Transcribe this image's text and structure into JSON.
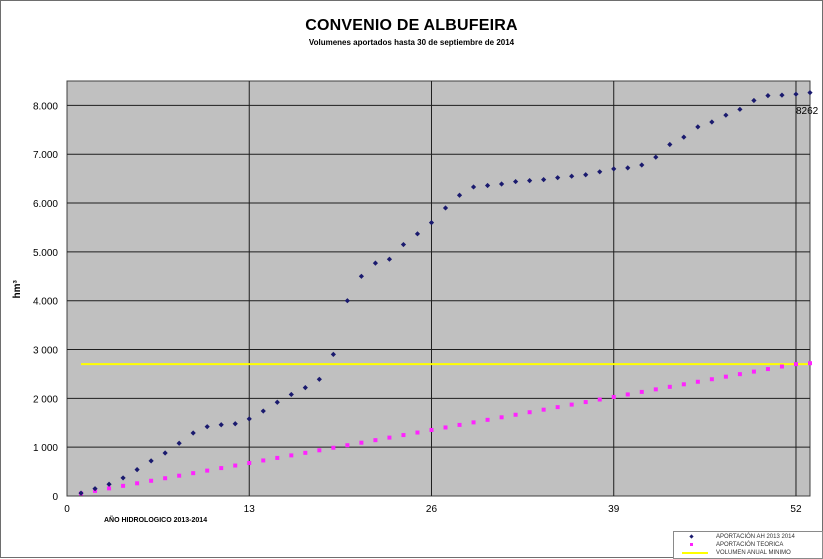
{
  "chart_data": {
    "type": "scatter",
    "title": "CONVENIO DE ALBUFEIRA",
    "subtitle": "Volumenes aportados hasta 30 de septiembre de 2014",
    "ylabel": "hm³",
    "xlabel": "AÑO HIDROLOGICO 2013-2014",
    "xlim": [
      0,
      53
    ],
    "ylim": [
      0,
      8500
    ],
    "x_ticks": [
      0,
      13,
      26,
      39,
      52
    ],
    "x_tick_labels": [
      "0",
      "13",
      "26",
      "39",
      "52"
    ],
    "y_ticks": [
      0,
      1000,
      2000,
      3000,
      4000,
      5000,
      6000,
      7000,
      8000
    ],
    "y_tick_labels": [
      "0",
      "1 000",
      "2 000",
      "3 000",
      "4.000",
      "5.000",
      "6.000",
      "7.000",
      "8.000"
    ],
    "grid": "vertical at x ticks, horizontal at y ticks",
    "annotation": {
      "text": "8262",
      "x": 53,
      "y": 8262
    },
    "series": [
      {
        "name": "APORTACIÓN AH 2013 2014",
        "color": "#1a1a6e",
        "marker": "diamond",
        "x": [
          1,
          2,
          3,
          4,
          5,
          6,
          7,
          8,
          9,
          10,
          11,
          12,
          13,
          14,
          15,
          16,
          17,
          18,
          19,
          20,
          21,
          22,
          23,
          24,
          25,
          26,
          27,
          28,
          29,
          30,
          31,
          32,
          33,
          34,
          35,
          36,
          37,
          38,
          39,
          40,
          41,
          42,
          43,
          44,
          45,
          46,
          47,
          48,
          49,
          50,
          51,
          52,
          53
        ],
        "y": [
          60,
          150,
          240,
          370,
          540,
          720,
          880,
          1080,
          1290,
          1420,
          1460,
          1480,
          1580,
          1740,
          1920,
          2080,
          2220,
          2390,
          2900,
          4000,
          4500,
          4770,
          4850,
          5150,
          5370,
          5600,
          5900,
          6160,
          6330,
          6360,
          6390,
          6440,
          6460,
          6480,
          6520,
          6550,
          6580,
          6640,
          6700,
          6720,
          6780,
          6940,
          7200,
          7350,
          7560,
          7660,
          7800,
          7920,
          8100,
          8200,
          8210,
          8230,
          8262
        ]
      },
      {
        "name": "APORTACIÓN TEORICA",
        "color": "#ff22ff",
        "marker": "square",
        "x": [
          1,
          2,
          3,
          4,
          5,
          6,
          7,
          8,
          9,
          10,
          11,
          12,
          13,
          14,
          15,
          16,
          17,
          18,
          19,
          20,
          21,
          22,
          23,
          24,
          25,
          26,
          27,
          28,
          29,
          30,
          31,
          32,
          33,
          34,
          35,
          36,
          37,
          38,
          39,
          40,
          41,
          42,
          43,
          44,
          45,
          46,
          47,
          48,
          49,
          50,
          51,
          52,
          53
        ],
        "y": [
          52,
          104,
          156,
          208,
          260,
          312,
          364,
          416,
          468,
          520,
          572,
          624,
          676,
          728,
          780,
          832,
          884,
          936,
          988,
          1040,
          1092,
          1144,
          1196,
          1248,
          1300,
          1352,
          1404,
          1456,
          1508,
          1560,
          1612,
          1664,
          1716,
          1768,
          1820,
          1872,
          1924,
          1976,
          2028,
          2080,
          2132,
          2184,
          2236,
          2288,
          2340,
          2392,
          2444,
          2496,
          2548,
          2600,
          2652,
          2700,
          2720
        ]
      },
      {
        "name": "VOLUMEN ANUAL MINIMO",
        "color": "#ffff00",
        "type": "line",
        "x": [
          1,
          53
        ],
        "y": [
          2700,
          2700
        ]
      }
    ]
  }
}
